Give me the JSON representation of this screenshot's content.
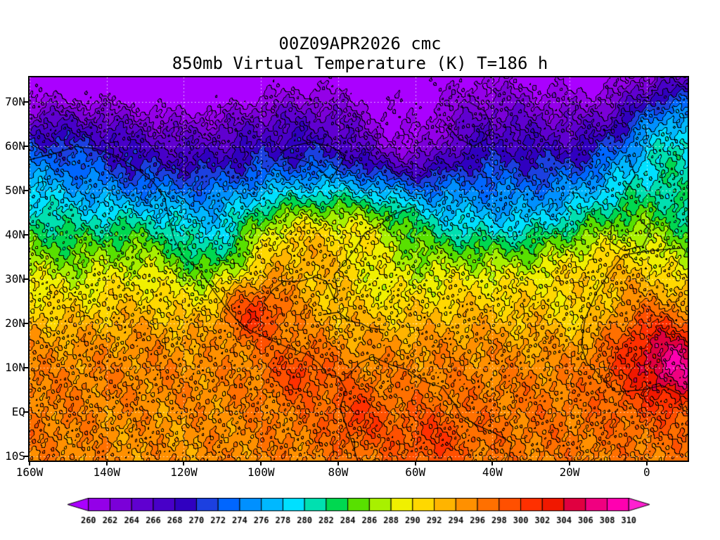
{
  "chart_data": {
    "type": "filled-contour-map",
    "title": "00Z09APR2026 cmc",
    "subtitle": "850mb Virtual Temperature (K) T=186 h",
    "model": "cmc",
    "valid_time": "00Z09APR2026",
    "pressure_level": "850mb",
    "variable": "Virtual Temperature",
    "units": "K",
    "forecast_hour": "T=186 h",
    "lon_range": [
      -160,
      10.6
    ],
    "lat_range": [
      -11,
      75.6
    ],
    "level_start": 260,
    "level_step": 2,
    "level_end": 310,
    "xticks": [
      {
        "label": "160W",
        "lon": -160
      },
      {
        "label": "140W",
        "lon": -140
      },
      {
        "label": "120W",
        "lon": -120
      },
      {
        "label": "100W",
        "lon": -100
      },
      {
        "label": "80W",
        "lon": -80
      },
      {
        "label": "60W",
        "lon": -60
      },
      {
        "label": "40W",
        "lon": -40
      },
      {
        "label": "20W",
        "lon": -20
      },
      {
        "label": "0",
        "lon": 0
      }
    ],
    "yticks": [
      {
        "label": "70N",
        "lat": 70
      },
      {
        "label": "60N",
        "lat": 60
      },
      {
        "label": "50N",
        "lat": 50
      },
      {
        "label": "40N",
        "lat": 40
      },
      {
        "label": "30N",
        "lat": 30
      },
      {
        "label": "20N",
        "lat": 20
      },
      {
        "label": "10N",
        "lat": 10
      },
      {
        "label": "EQ",
        "lat": 0
      },
      {
        "label": "10S",
        "lat": -10
      }
    ],
    "colorbar": {
      "labels": [
        "260",
        "262",
        "264",
        "266",
        "268",
        "270",
        "272",
        "274",
        "276",
        "278",
        "280",
        "282",
        "284",
        "286",
        "288",
        "290",
        "292",
        "294",
        "296",
        "298",
        "300",
        "302",
        "304",
        "306",
        "308",
        "310"
      ],
      "colors": [
        "#aa00ff",
        "#9400e8",
        "#7b00d8",
        "#6000d0",
        "#4800c8",
        "#3000c0",
        "#1c40e0",
        "#0066ff",
        "#0090ff",
        "#00b8ff",
        "#00e0ff",
        "#00e0b0",
        "#00d850",
        "#58e000",
        "#a8f000",
        "#f0f000",
        "#ffd800",
        "#ffb400",
        "#ff9000",
        "#ff7000",
        "#ff5000",
        "#ff3000",
        "#f01800",
        "#e00040",
        "#f00080",
        "#ff00b0",
        "#ff20d0"
      ]
    },
    "field_model": {
      "base_profile": [
        [
          -11,
          296.2
        ],
        [
          -5,
          296.6
        ],
        [
          0,
          296.6
        ],
        [
          5,
          296.3
        ],
        [
          10,
          295.6
        ],
        [
          15,
          294.6
        ],
        [
          20,
          292.8
        ],
        [
          25,
          290.6
        ],
        [
          30,
          288.4
        ],
        [
          35,
          285.6
        ],
        [
          40,
          282.6
        ],
        [
          45,
          279.6
        ],
        [
          50,
          276.4
        ],
        [
          55,
          272.8
        ],
        [
          60,
          269.2
        ],
        [
          65,
          265.6
        ],
        [
          70,
          262.2
        ],
        [
          76,
          258.4
        ]
      ],
      "waves": [
        [
          2.2,
          48,
          16,
          80,
          1.2
        ],
        [
          1.6,
          38,
          14,
          42,
          3.4
        ],
        [
          1.5,
          68,
          10,
          55,
          0.3
        ]
      ],
      "anomalies": [
        [
          -62,
          60,
          -7.5,
          10,
          7
        ],
        [
          -150,
          73,
          -4,
          16,
          6
        ],
        [
          -105,
          74,
          -3,
          20,
          5
        ],
        [
          8,
          64,
          10,
          10,
          9
        ],
        [
          -95,
          39,
          6.5,
          13,
          7
        ],
        [
          -70,
          42,
          5,
          8,
          6
        ],
        [
          -102,
          23,
          9.5,
          6.5,
          5
        ],
        [
          -20,
          33,
          5,
          12,
          8
        ],
        [
          4,
          13,
          9,
          9,
          8
        ],
        [
          9.5,
          9,
          5,
          5,
          5
        ],
        [
          -75,
          -1,
          3.5,
          5,
          5
        ],
        [
          -56,
          -7,
          3.5,
          7,
          5
        ],
        [
          -90,
          9,
          4,
          6,
          4
        ],
        [
          -135,
          52,
          -3,
          10,
          6
        ],
        [
          -45,
          44,
          -2.5,
          9,
          6
        ],
        [
          -88,
          56,
          -3,
          9,
          6
        ],
        [
          -15,
          23,
          -3,
          6,
          5
        ],
        [
          -112,
          37,
          -3,
          6,
          5
        ],
        [
          -125,
          -4,
          -2,
          18,
          7
        ]
      ],
      "noise": [
        [
          1.0,
          0.42,
          0.31,
          0.7
        ],
        [
          0.8,
          0.93,
          -0.57,
          2.1
        ],
        [
          0.6,
          1.71,
          1.23,
          4.4
        ],
        [
          0.5,
          3.1,
          -2.2,
          1.1
        ],
        [
          0.4,
          2.3,
          3.1,
          5.2
        ]
      ]
    },
    "coastlines": [
      [
        [
          -160,
          57
        ],
        [
          -153,
          58.5
        ],
        [
          -148,
          60
        ],
        [
          -143,
          59.5
        ],
        [
          -138,
          58
        ],
        [
          -133,
          55.5
        ],
        [
          -128,
          52
        ],
        [
          -125,
          48.5
        ],
        [
          -124,
          44
        ],
        [
          -122.5,
          39
        ],
        [
          -120,
          35
        ],
        [
          -116,
          32
        ],
        [
          -112,
          27
        ],
        [
          -109,
          23.5
        ],
        [
          -106,
          20.5
        ],
        [
          -103,
          18.5
        ],
        [
          -98,
          16.5
        ],
        [
          -93,
          14.5
        ],
        [
          -88,
          13
        ],
        [
          -85,
          11
        ],
        [
          -83,
          8.5
        ],
        [
          -80,
          8
        ],
        [
          -78,
          5
        ],
        [
          -79.5,
          1
        ],
        [
          -78,
          -3
        ],
        [
          -76,
          -8
        ],
        [
          -75,
          -11
        ]
      ],
      [
        [
          -99,
          25
        ],
        [
          -97,
          27.5
        ],
        [
          -94,
          29.5
        ],
        [
          -90,
          29.5
        ],
        [
          -86,
          30.5
        ],
        [
          -83,
          29.5
        ],
        [
          -81,
          25.5
        ],
        [
          -80,
          26.5
        ],
        [
          -81,
          31
        ],
        [
          -78,
          34
        ],
        [
          -75.5,
          37
        ],
        [
          -73,
          40.5
        ],
        [
          -69.5,
          42
        ],
        [
          -66,
          44.5
        ],
        [
          -63,
          45.5
        ],
        [
          -60,
          46.5
        ]
      ],
      [
        [
          -78,
          7.5
        ],
        [
          -74.5,
          11
        ],
        [
          -71,
          12.5
        ],
        [
          -66,
          10.5
        ],
        [
          -62,
          9.5
        ],
        [
          -58,
          7
        ],
        [
          -53,
          5.5
        ],
        [
          -50,
          2
        ],
        [
          -48,
          -1
        ],
        [
          -44,
          -3
        ],
        [
          -39,
          -5
        ],
        [
          -35,
          -7
        ],
        [
          -36,
          -11
        ]
      ],
      [
        [
          9,
          37
        ],
        [
          2,
          36.5
        ],
        [
          -6,
          35.5
        ],
        [
          -10,
          31
        ],
        [
          -13,
          27
        ],
        [
          -16,
          21
        ],
        [
          -17,
          15
        ],
        [
          -15.5,
          11
        ],
        [
          -13,
          9
        ],
        [
          -8,
          4.5
        ],
        [
          -1,
          5
        ],
        [
          4,
          6
        ],
        [
          8.5,
          4
        ],
        [
          9.5,
          0
        ]
      ],
      [
        [
          -9,
          43.5
        ],
        [
          -9.5,
          38.5
        ],
        [
          -6,
          36.5
        ],
        [
          -1,
          37.5
        ],
        [
          1,
          41
        ],
        [
          -2,
          43.5
        ]
      ],
      [
        [
          -5.5,
          50
        ],
        [
          -3,
          53.5
        ],
        [
          -5,
          58
        ]
      ],
      [
        [
          -95,
          57
        ],
        [
          -92,
          57.5
        ],
        [
          -88,
          56.5
        ],
        [
          -85,
          55
        ],
        [
          -82,
          52.5
        ],
        [
          -80,
          55
        ],
        [
          -78,
          58
        ],
        [
          -82,
          60
        ],
        [
          -87,
          61
        ],
        [
          -92,
          60
        ],
        [
          -95,
          58.5
        ]
      ],
      [
        [
          -84,
          22
        ],
        [
          -80,
          22.5
        ],
        [
          -77,
          20.5
        ],
        [
          -74,
          20
        ],
        [
          -72,
          19
        ],
        [
          -68,
          18.5
        ]
      ],
      [
        [
          -53,
          66
        ],
        [
          -49,
          62
        ],
        [
          -45,
          60
        ],
        [
          -42,
          61.5
        ],
        [
          -40,
          64
        ],
        [
          -42,
          68
        ],
        [
          -46,
          70
        ]
      ]
    ],
    "graticule_color": "rgba(255,255,255,0.85)"
  }
}
